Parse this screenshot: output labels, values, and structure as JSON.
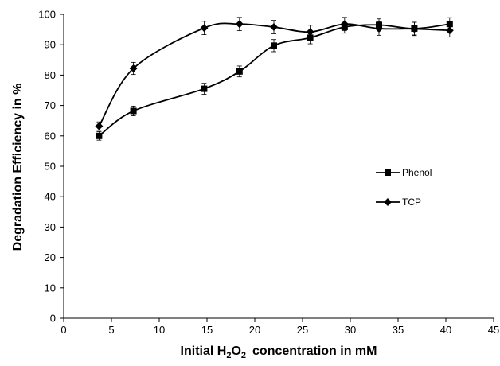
{
  "chart_data": {
    "type": "line",
    "title": "",
    "xlabel": "Initial H2O2 concentration in mM",
    "xlabel_parts": {
      "prefix": "Initial H",
      "sub1": "2",
      "mid": "O",
      "sub2": "2",
      "suffix": "concentration in mM"
    },
    "ylabel": "Degradation Efficiency in %",
    "xlim": [
      0,
      45
    ],
    "ylim": [
      0,
      100
    ],
    "x_ticks": [
      "0",
      "5",
      "10",
      "15",
      "20",
      "25",
      "30",
      "35",
      "40",
      "45"
    ],
    "y_ticks": [
      "0",
      "10",
      "20",
      "30",
      "40",
      "50",
      "60",
      "70",
      "80",
      "90",
      "100"
    ],
    "grid": false,
    "legend": "center-right",
    "series": [
      {
        "name": "Phenol",
        "marker": "square",
        "color": "#000000",
        "x": [
          3.7,
          7.3,
          14.7,
          18.4,
          22.0,
          25.8,
          29.4,
          33.0,
          36.7,
          40.4
        ],
        "y": [
          60,
          68.2,
          75.5,
          81.2,
          89.7,
          92.3,
          95.8,
          96.5,
          95.3,
          96.8
        ],
        "error": [
          1.4,
          1.6,
          1.8,
          1.8,
          2.0,
          2.0,
          2.0,
          2.0,
          2.1,
          2.1
        ]
      },
      {
        "name": "TCP",
        "marker": "diamond",
        "color": "#000000",
        "x": [
          3.7,
          7.3,
          14.7,
          18.4,
          22.0,
          25.8,
          29.4,
          33.0,
          36.7,
          40.4
        ],
        "y": [
          63.2,
          82.2,
          95.5,
          96.8,
          95.8,
          94.2,
          96.8,
          95.3,
          95.2,
          94.7
        ],
        "error": [
          1.4,
          2.0,
          2.2,
          2.2,
          2.2,
          2.2,
          2.2,
          2.2,
          2.2,
          2.2
        ]
      }
    ]
  }
}
